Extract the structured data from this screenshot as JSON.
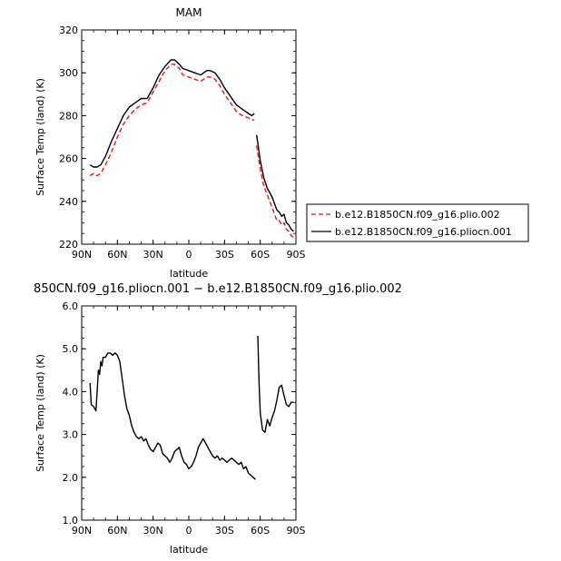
{
  "chart_data": [
    {
      "type": "line",
      "title": "MAM",
      "xlabel": "latitude",
      "ylabel": "Surface Temp (land) (K)",
      "xlim": [
        90,
        -90
      ],
      "ylim": [
        220,
        320
      ],
      "xticks": [
        90,
        60,
        30,
        0,
        -30,
        -60,
        -90
      ],
      "xtick_labels": [
        "90N",
        "60N",
        "30N",
        "0",
        "30S",
        "60S",
        "90S"
      ],
      "yticks": [
        220,
        240,
        260,
        280,
        300,
        320
      ],
      "ytick_labels": [
        "220",
        "240",
        "260",
        "280",
        "300",
        "320"
      ],
      "legend_position": "outside-right",
      "series": [
        {
          "name": "b.e12.B1850CN.f09_g16.plio.002",
          "color": "#e8141c",
          "dash": "dashed",
          "segments": [
            {
              "x": [
                83,
                80,
                77,
                74,
                70,
                65,
                60,
                55,
                50,
                45,
                40,
                35,
                30,
                25,
                20,
                15,
                12,
                8,
                5,
                0,
                -5,
                -10,
                -15,
                -18,
                -22,
                -26,
                -30,
                -35,
                -40,
                -45,
                -50,
                -53,
                -55
              ],
              "y": [
                252,
                253,
                252,
                253,
                257,
                263,
                270,
                276,
                280,
                283,
                285,
                286,
                291,
                296,
                301,
                304,
                304,
                302,
                299,
                298,
                297,
                296,
                298,
                298,
                297,
                294,
                290,
                286,
                282,
                280,
                279,
                278,
                278
              ]
            },
            {
              "x": [
                -57,
                -60,
                -63,
                -66,
                -68,
                -70,
                -72,
                -74,
                -76,
                -78,
                -80,
                -82,
                -84,
                -86,
                -88
              ],
              "y": [
                266,
                255,
                247,
                243,
                240,
                237,
                234,
                231,
                231,
                229,
                230,
                227,
                226,
                224,
                223
              ]
            }
          ]
        },
        {
          "name": "b.e12.B1850CN.f09_g16.pliocn.001",
          "color": "#000000",
          "dash": "solid",
          "segments": [
            {
              "x": [
                83,
                80,
                77,
                74,
                70,
                65,
                60,
                55,
                50,
                45,
                40,
                35,
                30,
                25,
                20,
                15,
                12,
                8,
                5,
                0,
                -5,
                -10,
                -15,
                -18,
                -22,
                -26,
                -30,
                -35,
                -40,
                -45,
                -50,
                -53,
                -55
              ],
              "y": [
                257,
                256,
                256,
                257,
                261,
                268,
                274,
                280,
                284,
                286,
                288,
                288,
                293,
                299,
                303,
                306,
                306,
                304,
                302,
                301,
                300,
                299,
                301,
                301,
                300,
                297,
                293,
                289,
                285,
                283,
                281,
                280,
                281
              ]
            },
            {
              "x": [
                -57,
                -60,
                -63,
                -66,
                -68,
                -70,
                -72,
                -74,
                -76,
                -78,
                -80,
                -82,
                -84,
                -86,
                -88
              ],
              "y": [
                271,
                259,
                251,
                246,
                244,
                242,
                239,
                236,
                235,
                233,
                234,
                230,
                229,
                227,
                226
              ]
            }
          ]
        }
      ]
    },
    {
      "type": "line",
      "title": "850CN.f09_g16.pliocn.001 − b.e12.B1850CN.f09_g16.plio.002",
      "xlabel": "latitude",
      "ylabel": "Surface Temp (land) (K)",
      "xlim": [
        90,
        -90
      ],
      "ylim": [
        1.0,
        6.0
      ],
      "xticks": [
        90,
        60,
        30,
        0,
        -30,
        -60,
        -90
      ],
      "xtick_labels": [
        "90N",
        "60N",
        "30N",
        "0",
        "30S",
        "60S",
        "90S"
      ],
      "yticks": [
        1,
        2,
        3,
        4,
        5,
        6
      ],
      "ytick_labels": [
        "1.0",
        "2.0",
        "3.0",
        "4.0",
        "5.0",
        "6.0"
      ],
      "series": [
        {
          "color": "#000000",
          "dash": "solid",
          "segments": [
            {
              "x": [
                83,
                82,
                80,
                78,
                77,
                76,
                75,
                74,
                73,
                72,
                70,
                68,
                66,
                64,
                62,
                60,
                58,
                56,
                54,
                52,
                50,
                48,
                46,
                44,
                42,
                40,
                38,
                36,
                34,
                32,
                30,
                28,
                26,
                24,
                22,
                20,
                18,
                16,
                14,
                12,
                10,
                8,
                6,
                4,
                2,
                0,
                -2,
                -4,
                -6,
                -8,
                -10,
                -12,
                -14,
                -16,
                -18,
                -20,
                -22,
                -24,
                -26,
                -28,
                -30,
                -32,
                -34,
                -36,
                -38,
                -40,
                -42,
                -44,
                -46,
                -48,
                -50,
                -52,
                -54,
                -56
              ],
              "y": [
                4.2,
                3.7,
                3.65,
                3.55,
                4.0,
                4.5,
                4.4,
                4.7,
                4.6,
                4.8,
                4.8,
                4.9,
                4.9,
                4.85,
                4.9,
                4.85,
                4.7,
                4.3,
                3.9,
                3.6,
                3.45,
                3.2,
                3.05,
                2.95,
                2.9,
                2.95,
                2.85,
                2.9,
                2.75,
                2.65,
                2.6,
                2.7,
                2.8,
                2.75,
                2.55,
                2.5,
                2.45,
                2.35,
                2.45,
                2.6,
                2.65,
                2.7,
                2.5,
                2.35,
                2.3,
                2.2,
                2.25,
                2.35,
                2.5,
                2.7,
                2.8,
                2.9,
                2.8,
                2.7,
                2.6,
                2.5,
                2.45,
                2.5,
                2.4,
                2.45,
                2.4,
                2.35,
                2.4,
                2.45,
                2.4,
                2.35,
                2.3,
                2.35,
                2.2,
                2.25,
                2.1,
                2.05,
                2.0,
                1.95
              ]
            },
            {
              "x": [
                -58,
                -59,
                -60,
                -62,
                -64,
                -66,
                -68,
                -70,
                -72,
                -74,
                -76,
                -78,
                -80,
                -82,
                -84,
                -86,
                -88
              ],
              "y": [
                5.3,
                4.2,
                3.5,
                3.1,
                3.05,
                3.35,
                3.2,
                3.4,
                3.55,
                3.8,
                4.1,
                4.15,
                3.9,
                3.7,
                3.65,
                3.75,
                3.75
              ]
            }
          ]
        }
      ]
    }
  ]
}
